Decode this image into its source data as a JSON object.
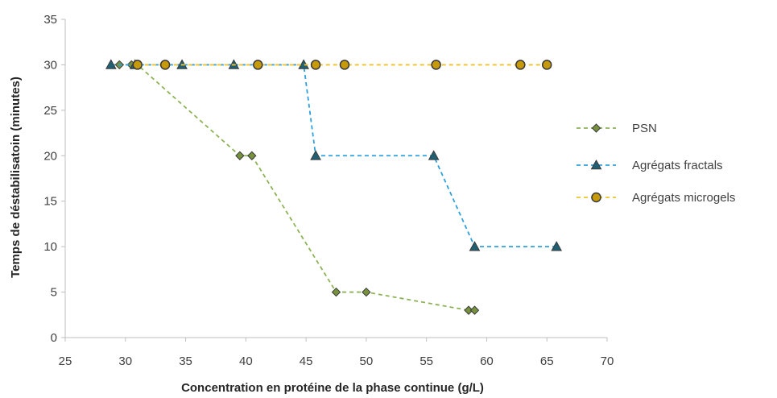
{
  "chart_data": {
    "type": "line",
    "title": "",
    "xlabel": "Concentration en protéine de la phase continue (g/L)",
    "ylabel": "Temps de déstabilisatoin (minutes)",
    "xlim": [
      25,
      70
    ],
    "ylim": [
      0,
      35
    ],
    "xticks": [
      25,
      30,
      35,
      40,
      45,
      50,
      55,
      60,
      65,
      70
    ],
    "yticks": [
      0,
      5,
      10,
      15,
      20,
      25,
      30,
      35
    ],
    "grid": false,
    "legend_position": "right",
    "series": [
      {
        "name": "PSN",
        "marker": "diamond",
        "color": "#8db356",
        "marker_fill": "#76923c",
        "line_style": "dashed",
        "x": [
          29.5,
          30.5,
          31,
          39.5,
          40.5,
          47.5,
          50,
          58.5,
          59
        ],
        "y": [
          30,
          30,
          30,
          20,
          20,
          5,
          5,
          3,
          3
        ]
      },
      {
        "name": "Agrégats fractals",
        "marker": "triangle",
        "color": "#2fa0dc",
        "marker_fill": "#215f73",
        "line_style": "dashed",
        "x": [
          28.8,
          30.8,
          34.7,
          39,
          44.8,
          45.8,
          55.6,
          59,
          65.8
        ],
        "y": [
          30,
          30,
          30,
          30,
          30,
          20,
          20,
          10,
          10
        ]
      },
      {
        "name": "Agrégats microgels",
        "marker": "circle",
        "color": "#f0c230",
        "marker_fill": "#c79a0a",
        "line_style": "dashed",
        "x": [
          31,
          33.3,
          41,
          45.8,
          48.2,
          55.8,
          62.8,
          65
        ],
        "y": [
          30,
          30,
          30,
          30,
          30,
          30,
          30,
          30
        ]
      }
    ]
  }
}
